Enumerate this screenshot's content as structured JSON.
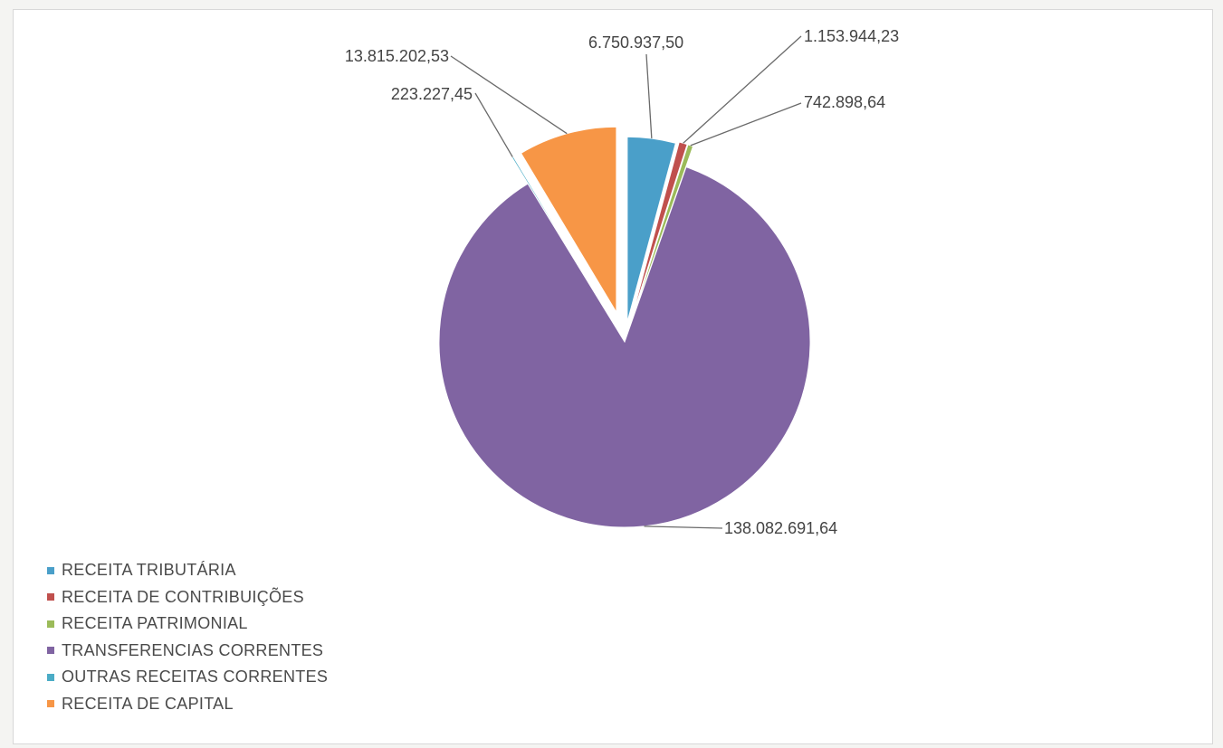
{
  "chart_data": {
    "type": "pie",
    "exploded": true,
    "categories": [
      "RECEITA TRIBUTÁRIA",
      "RECEITA DE CONTRIBUIÇÕES",
      "RECEITA PATRIMONIAL",
      "TRANSFERENCIAS CORRENTES",
      "OUTRAS RECEITAS CORRENTES",
      "RECEITA DE CAPITAL"
    ],
    "values": [
      6750937.5,
      1153944.23,
      742898.64,
      138082691.64,
      223227.45,
      13815202.53
    ],
    "data_labels": [
      "6.750.937,50",
      "1.153.944,23",
      "742.898,64",
      "138.082.691,64",
      "223.227,45",
      "13.815.202,53"
    ],
    "colors": [
      "#4a9fc9",
      "#c0504d",
      "#9bbb59",
      "#8064a2",
      "#4bacc6",
      "#f79646"
    ],
    "legend_position": "bottom-left",
    "title": ""
  }
}
